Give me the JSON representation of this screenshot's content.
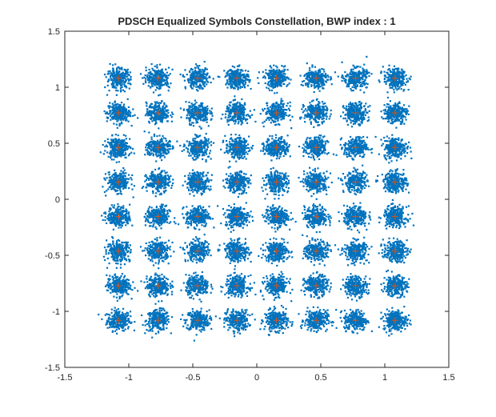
{
  "chart_data": {
    "type": "scatter",
    "title": "PDSCH Equalized Symbols Constellation, BWP index : 1",
    "xlabel": "",
    "ylabel": "",
    "xlim": [
      -1.5,
      1.5
    ],
    "ylim": [
      -1.5,
      1.5
    ],
    "xticks": [
      "-1.5",
      "-1",
      "-0.5",
      "0",
      "0.5",
      "1",
      "1.5"
    ],
    "yticks": [
      "-1.5",
      "-1",
      "-0.5",
      "0",
      "0.5",
      "1",
      "1.5"
    ],
    "grid": false,
    "legend": "none",
    "series": [
      {
        "kind": "equalized-symbols",
        "marker": "dot",
        "color": "#0072BD",
        "cluster_levels": [
          -1.0801,
          -0.7715,
          -0.4629,
          -0.1543,
          0.1543,
          0.4629,
          0.7715,
          1.0801
        ],
        "noise_std": 0.045
      },
      {
        "kind": "reference-constellation",
        "marker": "plus",
        "color": "#D95319",
        "levels": [
          -1.0801,
          -0.7715,
          -0.4629,
          -0.1543,
          0.1543,
          0.4629,
          0.7715,
          1.0801
        ]
      }
    ]
  }
}
